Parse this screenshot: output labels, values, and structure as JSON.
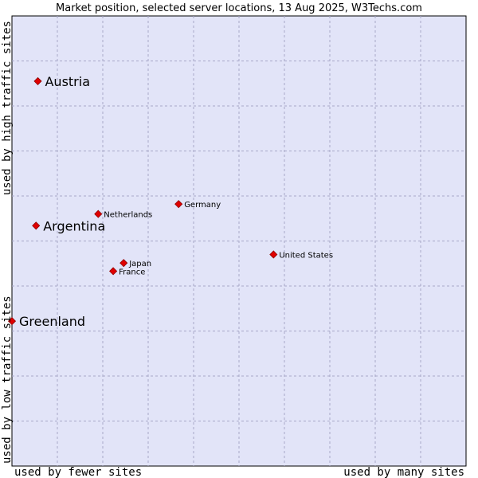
{
  "chart_data": {
    "type": "scatter",
    "title": "Market position, selected server locations, 13 Aug 2025, W3Techs.com",
    "x_axis": {
      "low_label": "used by fewer sites",
      "high_label": "used by many sites"
    },
    "y_axis": {
      "low_label": "used by low traffic sites",
      "high_label": "used by high traffic sites"
    },
    "xlim": [
      0,
      100
    ],
    "ylim": [
      0,
      100
    ],
    "grid": true,
    "colors": {
      "plot_background": "#e2e4f8",
      "marker": "#e00000",
      "grid": "#a8a8c8"
    },
    "points": [
      {
        "name": "Austria",
        "x": 5.7,
        "y": 85.5,
        "highlight": true
      },
      {
        "name": "Argentina",
        "x": 5.3,
        "y": 53.4,
        "highlight": true
      },
      {
        "name": "Greenland",
        "x": 0.0,
        "y": 32.2,
        "highlight": true
      },
      {
        "name": "Netherlands",
        "x": 19.0,
        "y": 56.0,
        "highlight": false
      },
      {
        "name": "Germany",
        "x": 36.7,
        "y": 58.2,
        "highlight": false
      },
      {
        "name": "United States",
        "x": 57.6,
        "y": 47.0,
        "highlight": false
      },
      {
        "name": "Japan",
        "x": 24.6,
        "y": 45.1,
        "highlight": false
      },
      {
        "name": "France",
        "x": 22.3,
        "y": 43.3,
        "highlight": false
      }
    ]
  }
}
